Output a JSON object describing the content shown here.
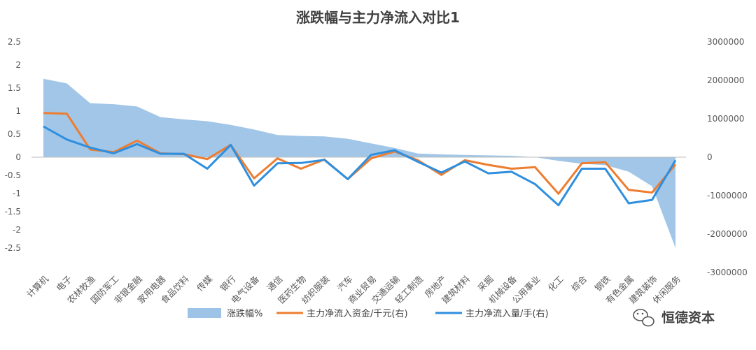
{
  "chart_data": {
    "type": "line",
    "title": "涨跌幅与主力净流入对比1",
    "categories": [
      "计算机",
      "电子",
      "农林牧渔",
      "国防军工",
      "非银金融",
      "家用电器",
      "食品饮料",
      "传媒",
      "银行",
      "电气设备",
      "通信",
      "医药生物",
      "纺织服装",
      "汽车",
      "商业贸易",
      "交通运输",
      "轻工制造",
      "房地产",
      "建筑材料",
      "采掘",
      "机械设备",
      "公用事业",
      "化工",
      "综合",
      "钢铁",
      "有色金属",
      "建筑装饰",
      "休闲服务"
    ],
    "y_left": {
      "range": [
        -3,
        2.5
      ],
      "ticks": [
        "2.5",
        "2",
        "1.5",
        "1",
        "0.5",
        "0",
        "-0.5",
        "-1",
        "-1.5",
        "-2",
        "-2.5"
      ]
    },
    "y_right": {
      "range": [
        -3000000,
        3000000
      ],
      "ticks": [
        "3000000",
        "2000000",
        "1000000",
        "0",
        "-1000000",
        "-2000000",
        "-3000000"
      ]
    },
    "grid": false,
    "legend_position": "bottom",
    "series": [
      {
        "name": "涨跌幅%",
        "type": "area",
        "axis": "left",
        "color": "#9dc3e6",
        "values": [
          1.7,
          1.6,
          1.17,
          1.15,
          1.1,
          0.87,
          0.82,
          0.78,
          0.7,
          0.6,
          0.48,
          0.46,
          0.45,
          0.4,
          0.3,
          0.2,
          0.08,
          0.06,
          0.05,
          0.04,
          0.03,
          0.0,
          -0.1,
          -0.18,
          -0.22,
          -0.4,
          -0.8,
          -2.5
        ]
      },
      {
        "name": "主力净流入资金/千元(右)",
        "type": "line",
        "axis": "right",
        "color": "#ed7d31",
        "values": [
          1150000,
          1130000,
          200000,
          130000,
          430000,
          100000,
          80000,
          -50000,
          320000,
          -550000,
          -30000,
          -300000,
          -60000,
          -570000,
          -30000,
          150000,
          -80000,
          -460000,
          -80000,
          -200000,
          -300000,
          -260000,
          -950000,
          -160000,
          -130000,
          -850000,
          -920000,
          -190000
        ]
      },
      {
        "name": "主力净流入量/手(右)",
        "type": "line",
        "axis": "right",
        "color": "#2e8fdf",
        "values": [
          800000,
          460000,
          250000,
          100000,
          340000,
          90000,
          90000,
          -300000,
          320000,
          -740000,
          -160000,
          -150000,
          -70000,
          -570000,
          60000,
          180000,
          -120000,
          -400000,
          -110000,
          -420000,
          -380000,
          -700000,
          -1250000,
          -300000,
          -300000,
          -1200000,
          -1110000,
          -80000
        ]
      }
    ]
  },
  "watermark": {
    "text": "恒德资本",
    "icon": "wechat-icon"
  }
}
